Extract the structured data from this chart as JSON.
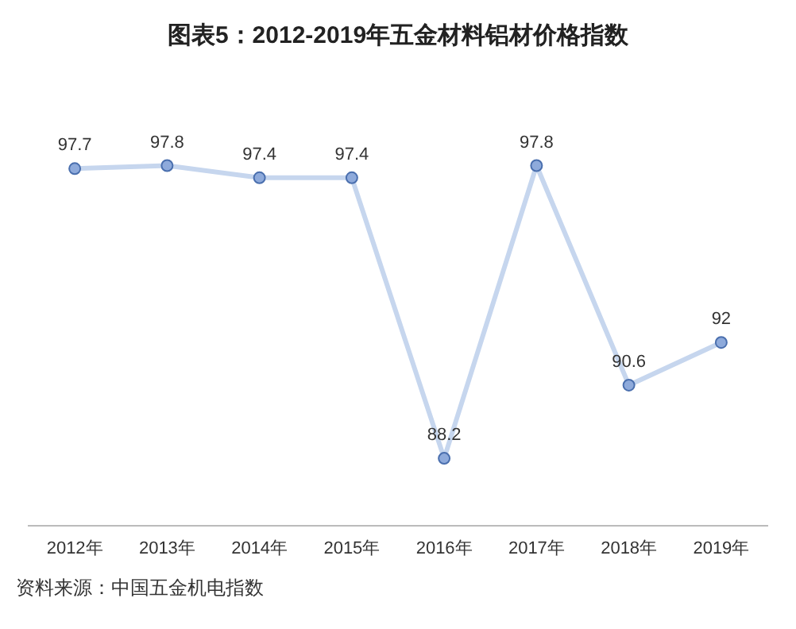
{
  "chart_data": {
    "type": "line",
    "title": "图表5：2012-2019年五金材料铝材价格指数",
    "categories": [
      "2012年",
      "2013年",
      "2014年",
      "2015年",
      "2016年",
      "2017年",
      "2018年",
      "2019年"
    ],
    "series": [
      {
        "color": "#c6d6ee",
        "values": [
          97.7,
          97.8,
          97.4,
          97.4,
          88.2,
          97.8,
          90.6,
          92
        ]
      }
    ],
    "marker": "circle",
    "data_labels": true,
    "grid": false,
    "legend": false,
    "tick_labels": "x",
    "annotations": [
      "资料来源：中国五金机电指数"
    ]
  }
}
